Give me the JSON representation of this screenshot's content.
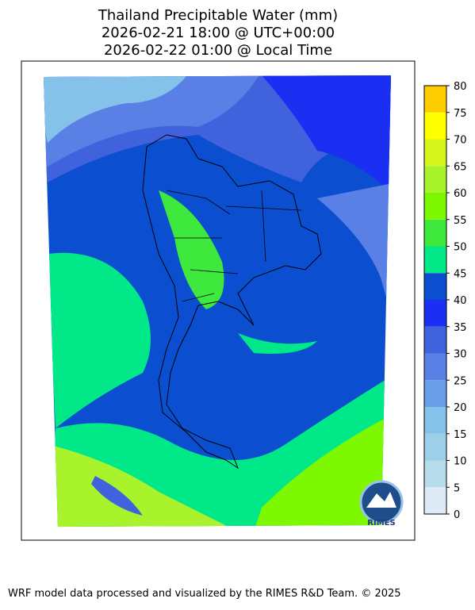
{
  "title": [
    "Thailand Precipitable Water (mm)",
    "2026-02-21 18:00 @ UTC+00:00",
    "2026-02-22 01:00 @ Local Time"
  ],
  "colorbar": {
    "ticks": [
      0,
      5,
      10,
      15,
      20,
      25,
      30,
      35,
      40,
      45,
      50,
      55,
      60,
      65,
      70,
      75,
      80
    ],
    "colors": [
      "#deebf7",
      "#b7dcec",
      "#9dcfe8",
      "#84c2ea",
      "#6a9ee8",
      "#5a80e6",
      "#4063dd",
      "#1b2ff2",
      "#0b4fd0",
      "#00e887",
      "#3fe83c",
      "#7ef800",
      "#a9f32c",
      "#d6f51c",
      "#ffff00",
      "#ffcc00"
    ]
  },
  "logo": "RIMES",
  "footer": "WRF model data processed and visualized by the RIMES R&D Team. © 2025"
}
